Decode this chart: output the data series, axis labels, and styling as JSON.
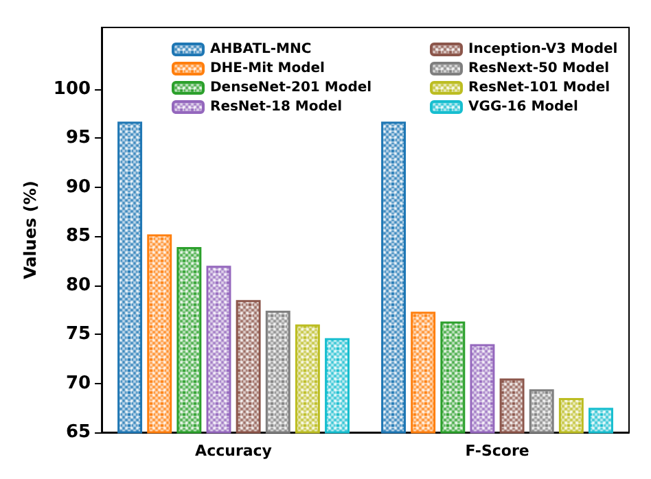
{
  "chart_data": {
    "type": "bar",
    "ylabel": "Values (%)",
    "categories": [
      "Accuracy",
      "F-Score"
    ],
    "series": [
      {
        "name": "AHBATL-MNC",
        "color": "#1f77b4",
        "values": [
          96.7,
          96.7
        ]
      },
      {
        "name": "DHE-Mit Model",
        "color": "#ff7f0e",
        "values": [
          85.2,
          77.3
        ]
      },
      {
        "name": "DenseNet-201 Model",
        "color": "#2ca02c",
        "values": [
          83.9,
          76.3
        ]
      },
      {
        "name": "ResNet-18 Model",
        "color": "#9467bd",
        "values": [
          82.0,
          74.0
        ]
      },
      {
        "name": "Inception-V3 Model",
        "color": "#8c564b",
        "values": [
          78.5,
          70.5
        ]
      },
      {
        "name": "ResNext-50 Model",
        "color": "#7f7f7f",
        "values": [
          77.4,
          69.4
        ]
      },
      {
        "name": "ResNet-101 Model",
        "color": "#bcbd22",
        "values": [
          76.0,
          68.5
        ]
      },
      {
        "name": "VGG-16 Model",
        "color": "#17becf",
        "values": [
          74.6,
          67.5
        ]
      }
    ],
    "ylim": [
      65,
      106.3
    ],
    "yticks": [
      65,
      70,
      75,
      80,
      85,
      90,
      95,
      100
    ],
    "grid": false,
    "legend": "top right"
  }
}
